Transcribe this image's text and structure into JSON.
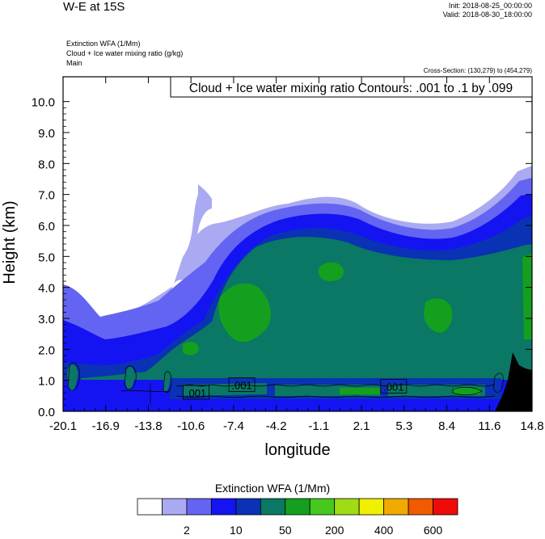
{
  "header": {
    "title": "W-E at 15S",
    "init": "Init: 2018-08-25_00:00:00",
    "valid": "Valid: 2018-08-30_18:00:00",
    "fields": [
      "Extinction WFA   (1/Mm)",
      "Cloud + Ice water mixing ratio   (g/kg)",
      "Main"
    ],
    "cross_section": "Cross-Section: (130,279) to (454,279)"
  },
  "chart_data": {
    "type": "heatmap",
    "xlabel": "longitude",
    "ylabel": "Height (km)",
    "x_ticks": [
      "-20.1",
      "-16.9",
      "-13.8",
      "-10.6",
      "-7.4",
      "-4.2",
      "-1.1",
      "2.1",
      "5.3",
      "8.4",
      "11.6",
      "14.8"
    ],
    "y_ticks": [
      "0.0",
      "1.0",
      "2.0",
      "3.0",
      "4.0",
      "5.0",
      "6.0",
      "7.0",
      "8.0",
      "9.0",
      "10.0"
    ],
    "xlim": [
      -20.1,
      14.8
    ],
    "ylim": [
      0,
      10.8
    ],
    "contour_text": "Cloud + Ice water mixing ratio Contours: .001 to .1 by .099",
    "contour_labels": [
      {
        "text": ".001",
        "x": -10.2,
        "y": 0.6
      },
      {
        "text": ".001",
        "x": -6.8,
        "y": 0.85
      },
      {
        "text": ".001",
        "x": 4.5,
        "y": 0.8
      }
    ],
    "colorbar": {
      "title": "Extinction WFA  (1/Mm)",
      "colors": [
        "#ffffff",
        "#aaaaf2",
        "#6464f2",
        "#1414f2",
        "#0a32b4",
        "#0a7864",
        "#14a01e",
        "#46c81e",
        "#a0dc14",
        "#f0f000",
        "#f0aa00",
        "#f05a00",
        "#f00a0a"
      ],
      "labels": [
        {
          "text": "2",
          "after": 2
        },
        {
          "text": "10",
          "after": 4
        },
        {
          "text": "50",
          "after": 6
        },
        {
          "text": "200",
          "after": 8
        },
        {
          "text": "400",
          "after": 10
        },
        {
          "text": "600",
          "after": 12
        }
      ]
    }
  }
}
